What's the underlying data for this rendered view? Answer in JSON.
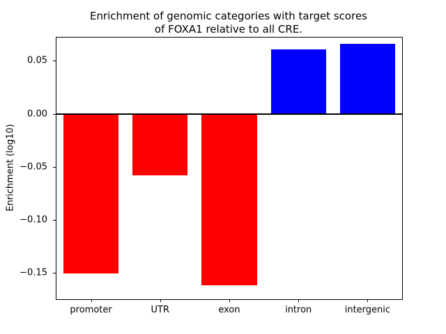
{
  "chart_data": {
    "type": "bar",
    "title": "Enrichment of genomic categories with target scores of FOXA1 relative to all CRE.",
    "title_lines": [
      "Enrichment of genomic categories with target scores",
      "of FOXA1 relative to all CRE."
    ],
    "categories": [
      "promoter",
      "UTR",
      "exon",
      "intron",
      "intergenic"
    ],
    "values": [
      -0.151,
      -0.058,
      -0.162,
      0.061,
      0.066
    ],
    "xlabel": "",
    "ylabel": "Enrichment (log10)",
    "ylim": [
      -0.175,
      0.072
    ],
    "yticks": [
      -0.15,
      -0.1,
      -0.05,
      0.0,
      0.05
    ],
    "bar_width_frac": 0.8,
    "colors": {
      "positive_bar": "#0000ff",
      "negative_bar": "#ff0000",
      "zero_line": "#000000",
      "axis": "#000000"
    },
    "zero_line": true,
    "grid": false,
    "legend": "none"
  }
}
